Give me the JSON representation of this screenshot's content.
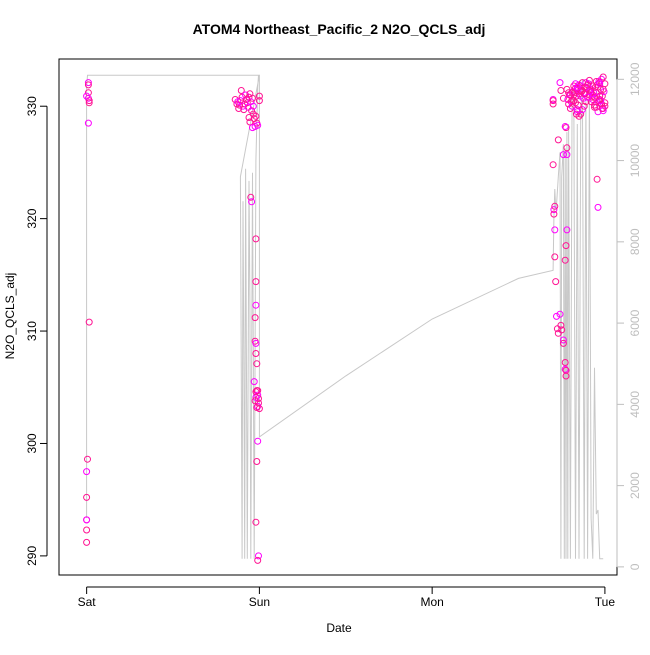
{
  "chart_data": {
    "type": "scatter",
    "title": "ATOM4 Northeast_Pacific_2 N2O_QCLS_adj",
    "xlabel": "Date",
    "ylabel": "N2O_QCLS_adj",
    "x_ticks": [
      {
        "value": 0,
        "label": "Sat"
      },
      {
        "value": 1,
        "label": "Sun"
      },
      {
        "value": 2,
        "label": "Mon"
      },
      {
        "value": 3,
        "label": "Tue"
      }
    ],
    "xlim": [
      -0.16,
      3.07
    ],
    "ylim": [
      288.3,
      334.2
    ],
    "y_ticks": [
      290,
      300,
      310,
      320,
      330
    ],
    "y2lim": [
      -200,
      12500
    ],
    "y2_ticks": [
      0,
      2000,
      4000,
      6000,
      8000,
      10000,
      12000
    ],
    "grid": false,
    "colors": {
      "points": "#FF1493",
      "points_alt": "#FF00FF",
      "line": "#C8C8C8",
      "axis": "#000000",
      "axis2": "#BEBEBE"
    },
    "series": [
      {
        "kind": "points",
        "x": [
          0.01,
          0.01,
          0.01,
          0.01,
          0.015,
          0.015,
          0.01,
          0.015,
          0.005,
          0.0,
          0.0,
          0.0,
          0.0,
          0.0,
          0.0,
          0.0,
          0.86,
          0.87,
          0.875,
          0.88,
          0.885,
          0.89,
          0.895,
          0.9,
          0.905,
          0.91,
          0.915,
          0.92,
          0.925,
          0.93,
          0.935,
          0.94,
          0.945,
          0.95,
          0.955,
          0.96,
          0.965,
          0.965,
          0.97,
          0.975,
          0.98,
          0.985,
          0.99,
          1.0,
          0.95,
          0.955,
          0.94,
          0.945,
          0.96,
          0.98,
          0.98,
          0.98,
          0.975,
          0.975,
          0.98,
          0.98,
          0.985,
          0.97,
          0.985,
          0.99,
          0.99,
          0.995,
          0.995,
          0.99,
          1.0,
          0.985,
          0.98,
          0.975,
          0.98,
          0.99,
          0.985,
          0.98,
          0.995,
          0.99,
          1.0,
          2.7,
          2.7,
          2.7,
          2.705,
          2.705,
          2.71,
          2.71,
          2.71,
          2.715,
          2.72,
          2.725,
          2.73,
          2.74,
          2.745,
          2.75,
          2.76,
          2.76,
          2.77,
          2.77,
          2.775,
          2.775,
          2.78,
          2.78,
          2.775,
          2.78,
          2.775,
          2.77,
          2.74,
          2.745,
          2.76,
          2.77,
          2.7,
          2.73,
          2.76,
          2.78,
          2.79,
          2.8,
          2.81,
          2.82,
          2.83,
          2.84,
          2.85,
          2.86,
          2.87,
          2.88,
          2.89,
          2.9,
          2.91,
          2.92,
          2.93,
          2.94,
          2.95,
          2.96,
          2.97,
          2.98,
          2.99,
          3.0,
          2.785,
          2.795,
          2.805,
          2.815,
          2.825,
          2.835,
          2.845,
          2.855,
          2.865,
          2.875,
          2.885,
          2.895,
          2.905,
          2.915,
          2.925,
          2.935,
          2.945,
          2.955,
          2.965,
          2.975,
          2.985,
          2.995,
          2.79,
          2.8,
          2.81,
          2.82,
          2.83,
          2.84,
          2.85,
          2.86,
          2.87,
          2.88,
          2.89,
          2.9,
          2.91,
          2.92,
          2.93,
          2.94,
          2.95,
          2.96,
          2.97,
          2.98,
          2.99,
          2.81,
          2.83,
          2.85,
          2.87,
          2.89,
          2.91,
          2.93,
          2.95,
          2.97,
          2.99,
          3.0,
          2.96,
          2.94,
          2.92,
          2.9,
          2.88,
          2.86,
          2.84,
          2.82,
          2.955,
          2.96,
          2.965,
          2.835,
          2.84,
          2.845,
          3.0,
          2.99,
          2.985,
          2.98,
          2.975,
          2.97
        ],
        "y": [
          332.1,
          331.9,
          331.2,
          330.7,
          330.3,
          330.5,
          328.5,
          310.8,
          298.6,
          297.5,
          295.2,
          293.2,
          293.2,
          292.3,
          291.2,
          330.9,
          330.6,
          330.2,
          330.4,
          329.8,
          330.1,
          330.5,
          331.4,
          330.8,
          330.0,
          329.7,
          330.2,
          331.0,
          330.6,
          330.3,
          329.9,
          330.8,
          331.1,
          330.4,
          329.6,
          330.7,
          330.0,
          329.3,
          328.9,
          328.2,
          329.1,
          328.5,
          328.3,
          330.9,
          321.9,
          321.5,
          329.0,
          328.6,
          328.1,
          318.2,
          314.4,
          312.3,
          311.2,
          309.1,
          308.9,
          308.0,
          307.1,
          305.5,
          304.7,
          304.7,
          304.3,
          304.0,
          303.6,
          303.3,
          303.1,
          303.2,
          304.1,
          303.8,
          304.6,
          300.2,
          298.4,
          293.0,
          290.0,
          289.6,
          330.5,
          330.6,
          330.5,
          330.2,
          320.8,
          320.4,
          321.1,
          319.0,
          316.6,
          314.4,
          311.3,
          310.2,
          309.8,
          311.5,
          310.5,
          310.1,
          309.2,
          308.9,
          307.2,
          306.6,
          306.5,
          306.0,
          325.7,
          326.3,
          328.1,
          319.0,
          317.6,
          316.3,
          332.1,
          331.4,
          330.7,
          328.2,
          324.8,
          327.0,
          325.7,
          331.5,
          331.2,
          331.0,
          330.5,
          331.8,
          332.0,
          331.6,
          331.1,
          330.9,
          331.4,
          331.7,
          332.1,
          331.9,
          332.3,
          331.5,
          331.0,
          330.8,
          331.2,
          331.7,
          332.1,
          332.4,
          332.6,
          332.0,
          330.6,
          331.0,
          330.4,
          331.3,
          331.2,
          330.9,
          331.5,
          331.8,
          331.3,
          330.7,
          331.1,
          331.6,
          332.0,
          331.4,
          330.8,
          331.2,
          331.7,
          331.9,
          332.2,
          331.5,
          330.9,
          331.3,
          330.2,
          329.8,
          330.0,
          330.5,
          330.3,
          329.5,
          329.1,
          329.3,
          329.7,
          330.0,
          330.4,
          330.8,
          331.0,
          331.2,
          330.6,
          330.1,
          329.9,
          330.3,
          330.6,
          330.2,
          329.8,
          331.2,
          331.6,
          331.9,
          332.1,
          331.7,
          331.3,
          331.8,
          332.2,
          332.0,
          331.5,
          330.3,
          329.5,
          329.9,
          330.4,
          330.8,
          331.1,
          331.4,
          331.7,
          331.0,
          323.5,
          321.0,
          330.5,
          329.3,
          329.7,
          330.1,
          330.0,
          329.6,
          329.8,
          330.2,
          330.5,
          330.9
        ]
      },
      {
        "kind": "line",
        "axis": "right",
        "x": [
          0.0,
          0.0,
          0.005,
          0.01,
          0.015,
          0.02,
          0.03,
          0.035,
          0.04,
          0.06,
          0.1,
          0.2,
          0.3,
          0.4,
          0.5,
          0.6,
          0.7,
          0.8,
          0.88,
          0.9,
          0.91,
          1.0,
          1.0,
          0.89,
          0.9,
          0.905,
          0.91,
          0.915,
          0.92,
          0.93,
          0.94,
          0.945,
          0.95,
          0.96,
          0.97,
          0.98,
          0.99,
          0.995,
          1.0,
          1.0,
          1.5,
          2.0,
          2.5,
          2.7,
          2.7,
          2.705,
          2.71,
          2.715,
          2.72,
          2.73,
          2.74,
          2.745,
          2.75,
          2.76,
          2.765,
          2.77,
          2.775,
          2.78,
          2.785,
          2.79,
          2.8,
          2.81,
          2.82,
          2.83,
          2.84,
          2.85,
          2.86,
          2.87,
          2.88,
          2.89,
          2.9,
          2.91,
          2.92,
          2.93,
          2.94,
          2.95,
          2.96,
          2.97,
          2.98,
          2.985,
          2.99
        ],
        "y": [
          1200,
          11800,
          12100,
          12100,
          12100,
          12100,
          12100,
          12100,
          12100,
          12100,
          12100,
          12100,
          12100,
          12100,
          12100,
          12100,
          12100,
          12100,
          12100,
          12100,
          12100,
          12100,
          12100,
          9600,
          200,
          9000,
          5500,
          200,
          9800,
          200,
          9500,
          6500,
          200,
          9700,
          200,
          10000,
          11800,
          12100,
          12100,
          3200,
          4700,
          6100,
          7100,
          7300,
          7300,
          8600,
          9300,
          8800,
          8900,
          9600,
          10200,
          200,
          9600,
          10400,
          200,
          10300,
          200,
          10700,
          200,
          10900,
          200,
          11800,
          11700,
          200,
          10900,
          200,
          11000,
          12000,
          200,
          11500,
          200,
          11900,
          1200,
          200,
          4900,
          1300,
          1400,
          200,
          200,
          200,
          200
        ]
      }
    ]
  }
}
